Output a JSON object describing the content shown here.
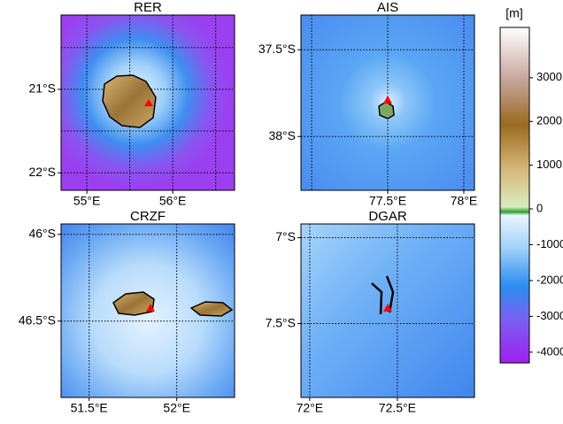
{
  "colorbar": {
    "label": "[m]",
    "clim": [
      -4300,
      4150
    ],
    "ticks": [
      3000,
      2000,
      1000,
      0,
      -1000,
      -2000,
      -3000,
      -4000
    ]
  },
  "panels": [
    {
      "title": "RER",
      "xlim": [
        54.7,
        56.72
      ],
      "ylim": [
        -22.21,
        -20.11
      ],
      "xgrid": [
        55,
        55.5,
        56,
        56.5
      ],
      "ygrid": [
        -20.5,
        -21,
        -21.5,
        -22
      ],
      "xticks": [
        {
          "value": 55,
          "label": "55°E"
        },
        {
          "value": 56,
          "label": "56°E"
        }
      ],
      "yticks": [
        {
          "value": -21,
          "label": "21°S"
        },
        {
          "value": -22,
          "label": "22°S"
        }
      ]
    },
    {
      "title": "AIS",
      "xlim": [
        76.93,
        78.07
      ],
      "ylim": [
        -38.31,
        -37.3
      ],
      "xgrid": [
        77,
        77.5,
        78
      ],
      "ygrid": [
        -37.5,
        -38
      ],
      "xticks": [
        {
          "value": 77.5,
          "label": "77.5°E"
        },
        {
          "value": 78,
          "label": "78°E"
        }
      ],
      "yticks": [
        {
          "value": -37.5,
          "label": "37.5°S"
        },
        {
          "value": -38,
          "label": "38°S"
        }
      ]
    },
    {
      "title": "CRZF",
      "xlim": [
        51.34,
        52.33
      ],
      "ylim": [
        -46.94,
        -45.94
      ],
      "xgrid": [
        51.5,
        52
      ],
      "ygrid": [
        -46,
        -46.5
      ],
      "xticks": [
        {
          "value": 51.5,
          "label": "51.5°E"
        },
        {
          "value": 52,
          "label": "52°E"
        }
      ],
      "yticks": [
        {
          "value": -46,
          "label": "46°S"
        },
        {
          "value": -46.5,
          "label": "46.5°S"
        }
      ]
    },
    {
      "title": "DGAR",
      "xlim": [
        71.95,
        72.94
      ],
      "ylim": [
        -7.93,
        -6.92
      ],
      "xgrid": [
        72,
        72.5
      ],
      "ygrid": [
        -7,
        -7.5
      ],
      "xticks": [
        {
          "value": 72,
          "label": "72°E"
        },
        {
          "value": 72.5,
          "label": "72.5°E"
        }
      ],
      "yticks": [
        {
          "value": -7,
          "label": "7°S"
        },
        {
          "value": -7.5,
          "label": "7.5°S"
        }
      ]
    }
  ]
}
